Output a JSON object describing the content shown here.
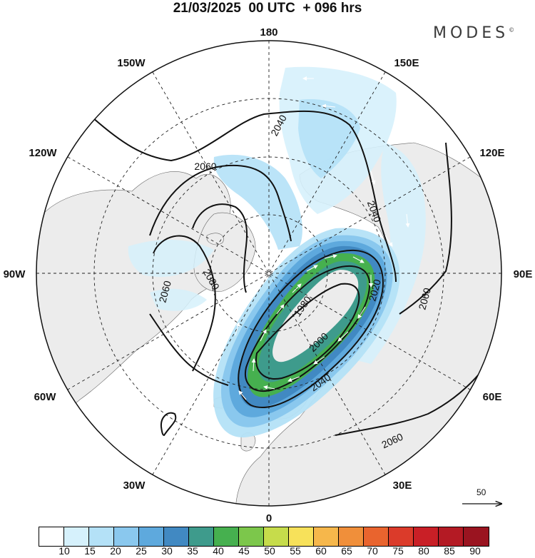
{
  "title": "21/03/2025  00 UTC  + 096 hrs",
  "brand": "MODES",
  "brand_mark": "©",
  "map": {
    "projection": "north-polar-stereographic",
    "longitude_labels": [
      {
        "text": "180",
        "lon": 180
      },
      {
        "text": "150E",
        "lon": 150
      },
      {
        "text": "120E",
        "lon": 120
      },
      {
        "text": "90E",
        "lon": 90
      },
      {
        "text": "60E",
        "lon": 60
      },
      {
        "text": "30E",
        "lon": 30
      },
      {
        "text": "0",
        "lon": 0
      },
      {
        "text": "30W",
        "lon": -30
      },
      {
        "text": "60W",
        "lon": -60
      },
      {
        "text": "90W",
        "lon": -90
      },
      {
        "text": "120W",
        "lon": -120
      },
      {
        "text": "150W",
        "lon": -150
      }
    ],
    "contour_labels": [
      "2040",
      "2060",
      "2040",
      "2080",
      "2060",
      "1980",
      "2020",
      "2000",
      "2040",
      "2060",
      "2060"
    ],
    "wind_vector_reference": "50"
  },
  "colorbar": {
    "colors": [
      "#ffffff",
      "#d6f1fc",
      "#b4e1f7",
      "#8ac8ee",
      "#5ea9dd",
      "#4189c2",
      "#3e9b8c",
      "#46b04f",
      "#7cc74b",
      "#c6dc4b",
      "#f7e15a",
      "#f6b74b",
      "#f08f3a",
      "#e9642e",
      "#db3b2a",
      "#c91f26",
      "#b41a24",
      "#9a1420"
    ],
    "ticks": [
      "10",
      "15",
      "20",
      "25",
      "30",
      "35",
      "40",
      "45",
      "50",
      "55",
      "60",
      "65",
      "70",
      "75",
      "80",
      "85",
      "90"
    ]
  }
}
